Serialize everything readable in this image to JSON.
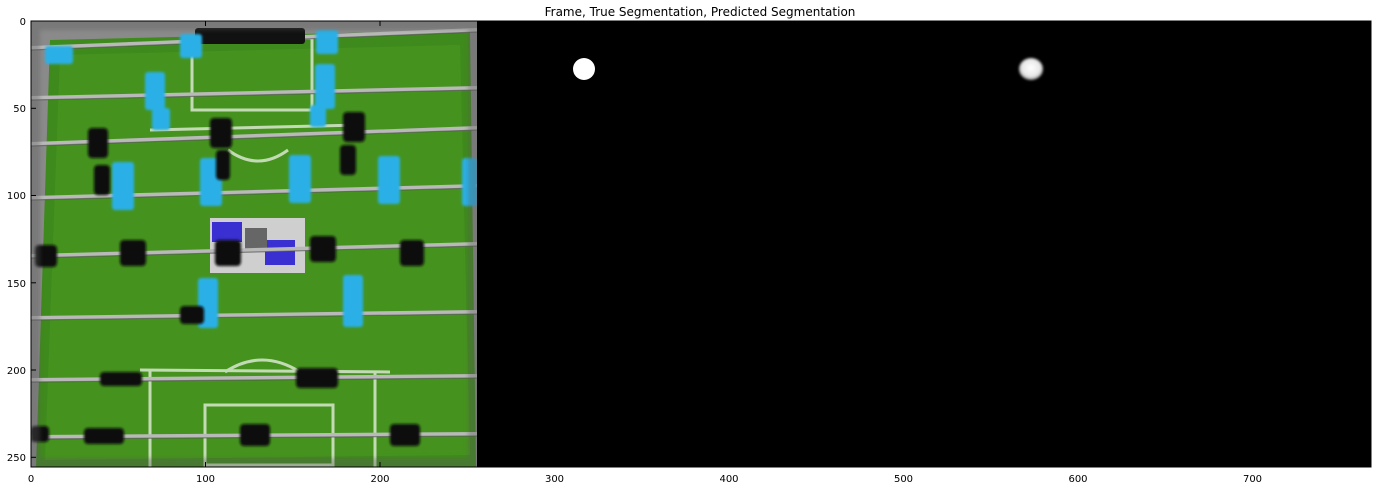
{
  "figure": {
    "title": "Frame, True Segmentation, Predicted Segmentation",
    "x_ticks": [
      "0",
      "100",
      "200",
      "300",
      "400",
      "500",
      "600",
      "700"
    ],
    "y_ticks": [
      "0",
      "50",
      "100",
      "150",
      "200",
      "250"
    ]
  },
  "images": [
    {
      "name": "frame",
      "content": "foosball table camera frame"
    },
    {
      "name": "true-segmentation",
      "content": "ball mask"
    },
    {
      "name": "predicted-segmentation",
      "content": "ball mask"
    }
  ],
  "colors": {
    "pitch": "#3f8a1c",
    "player_light": "#2ab0e6",
    "player_dark": "#0b0b0b",
    "background": "#000000",
    "mask": "#ffffff"
  }
}
